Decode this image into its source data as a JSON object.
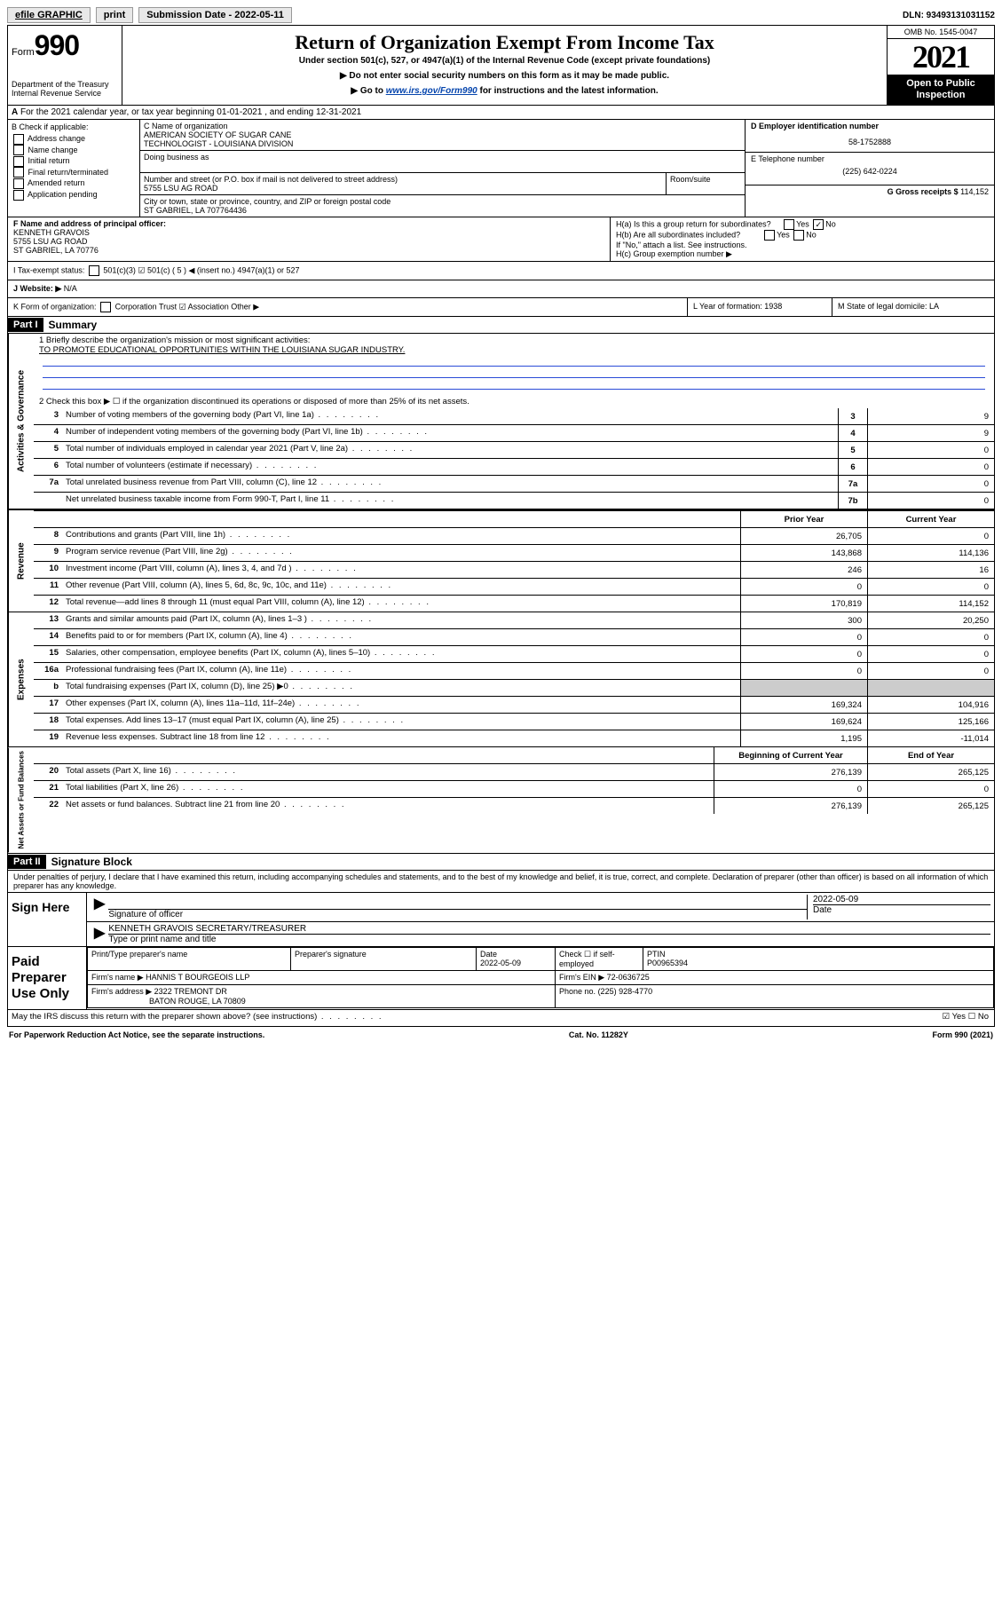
{
  "top": {
    "efile": "efile GRAPHIC",
    "print": "print",
    "sub_label": "Submission Date - 2022-05-11",
    "dln": "DLN: 93493131031152"
  },
  "header": {
    "form_label": "Form",
    "form_num": "990",
    "dept": "Department of the Treasury",
    "irs": "Internal Revenue Service",
    "title": "Return of Organization Exempt From Income Tax",
    "sub1": "Under section 501(c), 527, or 4947(a)(1) of the Internal Revenue Code (except private foundations)",
    "sub2": "▶ Do not enter social security numbers on this form as it may be made public.",
    "sub3_pre": "▶ Go to ",
    "sub3_link": "www.irs.gov/Form990",
    "sub3_post": " for instructions and the latest information.",
    "omb": "OMB No. 1545-0047",
    "year": "2021",
    "open": "Open to Public Inspection"
  },
  "rowA": {
    "text": "For the 2021 calendar year, or tax year beginning 01-01-2021   , and ending 12-31-2021"
  },
  "B": {
    "label": "B Check if applicable:",
    "items": [
      "Address change",
      "Name change",
      "Initial return",
      "Final return/terminated",
      "Amended return",
      "Application pending"
    ]
  },
  "C": {
    "name_label": "C Name of organization",
    "name1": "AMERICAN SOCIETY OF SUGAR CANE",
    "name2": "TECHNOLOGIST - LOUISIANA DIVISION",
    "dba": "Doing business as",
    "addr_label": "Number and street (or P.O. box if mail is not delivered to street address)",
    "room": "Room/suite",
    "addr": "5755 LSU AG ROAD",
    "city_label": "City or town, state or province, country, and ZIP or foreign postal code",
    "city": "ST GABRIEL, LA  707764436"
  },
  "D": {
    "label": "D Employer identification number",
    "ein": "58-1752888",
    "e_label": "E Telephone number",
    "phone": "(225) 642-0224",
    "g_label": "G Gross receipts $",
    "gross": "114,152"
  },
  "F": {
    "label": "F  Name and address of principal officer:",
    "name": "KENNETH GRAVOIS",
    "addr1": "5755 LSU AG ROAD",
    "addr2": "ST GABRIEL, LA  70776"
  },
  "H": {
    "a": "H(a)  Is this a group return for subordinates?",
    "a_ans": "No",
    "b": "H(b)  Are all subordinates included?",
    "b_note": "If \"No,\" attach a list. See instructions.",
    "c": "H(c)  Group exemption number ▶"
  },
  "I": {
    "label": "I   Tax-exempt status:",
    "opts": "501(c)(3)   ☑ 501(c) ( 5 ) ◀ (insert no.)    4947(a)(1) or    527"
  },
  "J": {
    "label": "J   Website: ▶",
    "val": "N/A"
  },
  "K": {
    "label": "K Form of organization:",
    "opts": "Corporation    Trust  ☑ Association    Other ▶"
  },
  "L": {
    "label": "L Year of formation: 1938"
  },
  "M": {
    "label": "M State of legal domicile: LA"
  },
  "part1": {
    "header": "Part I",
    "title": "Summary",
    "mission_label": "1   Briefly describe the organization's mission or most significant activities:",
    "mission": "TO PROMOTE EDUCATIONAL OPPORTUNITIES WITHIN THE LOUISIANA SUGAR INDUSTRY.",
    "line2": "2   Check this box ▶ ☐  if the organization discontinued its operations or disposed of more than 25% of its net assets."
  },
  "gov_lines": [
    {
      "n": "3",
      "d": "Number of voting members of the governing body (Part VI, line 1a)",
      "box": "3",
      "v": "9"
    },
    {
      "n": "4",
      "d": "Number of independent voting members of the governing body (Part VI, line 1b)",
      "box": "4",
      "v": "9"
    },
    {
      "n": "5",
      "d": "Total number of individuals employed in calendar year 2021 (Part V, line 2a)",
      "box": "5",
      "v": "0"
    },
    {
      "n": "6",
      "d": "Total number of volunteers (estimate if necessary)",
      "box": "6",
      "v": "0"
    },
    {
      "n": "7a",
      "d": "Total unrelated business revenue from Part VIII, column (C), line 12",
      "box": "7a",
      "v": "0"
    },
    {
      "n": "",
      "d": "Net unrelated business taxable income from Form 990-T, Part I, line 11",
      "box": "7b",
      "v": "0"
    }
  ],
  "col_headers": {
    "prior": "Prior Year",
    "current": "Current Year",
    "begin": "Beginning of Current Year",
    "end": "End of Year"
  },
  "revenue": [
    {
      "n": "8",
      "d": "Contributions and grants (Part VIII, line 1h)",
      "p": "26,705",
      "c": "0"
    },
    {
      "n": "9",
      "d": "Program service revenue (Part VIII, line 2g)",
      "p": "143,868",
      "c": "114,136"
    },
    {
      "n": "10",
      "d": "Investment income (Part VIII, column (A), lines 3, 4, and 7d )",
      "p": "246",
      "c": "16"
    },
    {
      "n": "11",
      "d": "Other revenue (Part VIII, column (A), lines 5, 6d, 8c, 9c, 10c, and 11e)",
      "p": "0",
      "c": "0"
    },
    {
      "n": "12",
      "d": "Total revenue—add lines 8 through 11 (must equal Part VIII, column (A), line 12)",
      "p": "170,819",
      "c": "114,152"
    }
  ],
  "expenses": [
    {
      "n": "13",
      "d": "Grants and similar amounts paid (Part IX, column (A), lines 1–3 )",
      "p": "300",
      "c": "20,250"
    },
    {
      "n": "14",
      "d": "Benefits paid to or for members (Part IX, column (A), line 4)",
      "p": "0",
      "c": "0"
    },
    {
      "n": "15",
      "d": "Salaries, other compensation, employee benefits (Part IX, column (A), lines 5–10)",
      "p": "0",
      "c": "0"
    },
    {
      "n": "16a",
      "d": "Professional fundraising fees (Part IX, column (A), line 11e)",
      "p": "0",
      "c": "0"
    },
    {
      "n": "b",
      "d": "Total fundraising expenses (Part IX, column (D), line 25) ▶0",
      "p": "",
      "c": "",
      "shaded": true
    },
    {
      "n": "17",
      "d": "Other expenses (Part IX, column (A), lines 11a–11d, 11f–24e)",
      "p": "169,324",
      "c": "104,916"
    },
    {
      "n": "18",
      "d": "Total expenses. Add lines 13–17 (must equal Part IX, column (A), line 25)",
      "p": "169,624",
      "c": "125,166"
    },
    {
      "n": "19",
      "d": "Revenue less expenses. Subtract line 18 from line 12",
      "p": "1,195",
      "c": "-11,014"
    }
  ],
  "netassets": [
    {
      "n": "20",
      "d": "Total assets (Part X, line 16)",
      "p": "276,139",
      "c": "265,125"
    },
    {
      "n": "21",
      "d": "Total liabilities (Part X, line 26)",
      "p": "0",
      "c": "0"
    },
    {
      "n": "22",
      "d": "Net assets or fund balances. Subtract line 21 from line 20",
      "p": "276,139",
      "c": "265,125"
    }
  ],
  "side_labels": {
    "gov": "Activities & Governance",
    "rev": "Revenue",
    "exp": "Expenses",
    "net": "Net Assets or Fund Balances"
  },
  "part2": {
    "header": "Part II",
    "title": "Signature Block",
    "penalty": "Under penalties of perjury, I declare that I have examined this return, including accompanying schedules and statements, and to the best of my knowledge and belief, it is true, correct, and complete. Declaration of preparer (other than officer) is based on all information of which preparer has any knowledge."
  },
  "sign": {
    "label": "Sign Here",
    "sig_of": "Signature of officer",
    "date_label": "Date",
    "date": "2022-05-09",
    "name": "KENNETH GRAVOIS  SECRETARY/TREASURER",
    "type_label": "Type or print name and title"
  },
  "preparer": {
    "label": "Paid Preparer Use Only",
    "print_name": "Print/Type preparer's name",
    "sig": "Preparer's signature",
    "date_label": "Date",
    "date": "2022-05-09",
    "check": "Check ☐ if self-employed",
    "ptin_label": "PTIN",
    "ptin": "P00965394",
    "firm_name_label": "Firm's name    ▶",
    "firm_name": "HANNIS T BOURGEOIS LLP",
    "firm_ein_label": "Firm's EIN ▶",
    "firm_ein": "72-0636725",
    "firm_addr_label": "Firm's address ▶",
    "firm_addr1": "2322 TREMONT DR",
    "firm_addr2": "BATON ROUGE, LA  70809",
    "phone_label": "Phone no.",
    "phone": "(225) 928-4770"
  },
  "may_discuss": "May the IRS discuss this return with the preparer shown above? (see instructions)",
  "may_ans": "☑ Yes  ☐ No",
  "footer": {
    "pra": "For Paperwork Reduction Act Notice, see the separate instructions.",
    "cat": "Cat. No. 11282Y",
    "form": "Form 990 (2021)"
  }
}
